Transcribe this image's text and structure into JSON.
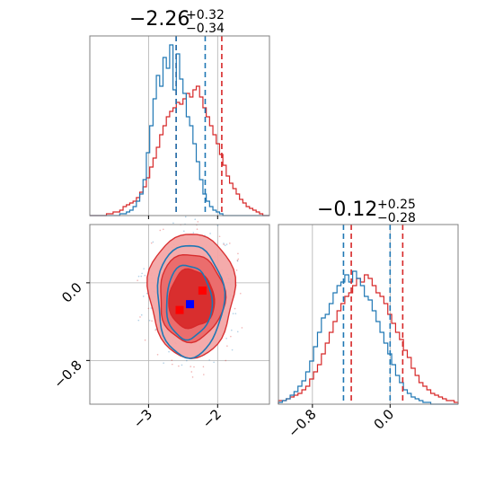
{
  "chart_data": {
    "type": "corner",
    "colors": {
      "series_a": "#d62728",
      "series_b": "#1f77b4",
      "marker_a": "#ff0000",
      "marker_b": "#0000ff",
      "grid": "#b0b0b0",
      "frame": "#808080"
    },
    "param1": {
      "title_main": "−2.26",
      "title_plus": "+0.32",
      "title_minus": "−0.34",
      "range": [
        -3.85,
        -1.25
      ],
      "ticks": [
        -3,
        -2
      ],
      "tick_labels": [
        "−3",
        "−2"
      ],
      "quantiles_series_a": [
        -2.6,
        -1.94
      ],
      "quantiles_series_b": [
        -2.6,
        -2.18
      ]
    },
    "param2": {
      "title_main": "−0.12",
      "title_plus": "+0.25",
      "title_minus": "−0.28",
      "range": [
        -1.15,
        0.7
      ],
      "ticks": [
        -0.8,
        0.0
      ],
      "tick_labels": [
        "−0.8",
        "0.0"
      ],
      "quantiles_series_a": [
        -0.4,
        0.13
      ],
      "quantiles_series_b": [
        -0.48,
        0.0
      ]
    },
    "hist1_series_a": [
      0,
      0,
      0,
      0,
      0,
      0.01,
      0.01,
      0.02,
      0.02,
      0.03,
      0.05,
      0.06,
      0.07,
      0.08,
      0.1,
      0.13,
      0.16,
      0.21,
      0.27,
      0.32,
      0.38,
      0.45,
      0.5,
      0.55,
      0.58,
      0.6,
      0.63,
      0.62,
      0.65,
      0.68,
      0.66,
      0.7,
      0.72,
      0.66,
      0.6,
      0.55,
      0.5,
      0.45,
      0.4,
      0.34,
      0.28,
      0.22,
      0.18,
      0.15,
      0.12,
      0.09,
      0.07,
      0.05,
      0.04,
      0.03,
      0.02,
      0.01,
      0,
      0
    ],
    "hist1_series_b": [
      0,
      0,
      0,
      0,
      0,
      0,
      0,
      0,
      0,
      0.01,
      0.01,
      0.02,
      0.03,
      0.05,
      0.08,
      0.12,
      0.2,
      0.35,
      0.5,
      0.65,
      0.78,
      0.72,
      0.88,
      0.82,
      0.95,
      0.7,
      0.9,
      0.76,
      0.68,
      0.55,
      0.5,
      0.4,
      0.3,
      0.2,
      0.12,
      0.08,
      0.05,
      0.03,
      0.02,
      0.01,
      0,
      0,
      0,
      0,
      0,
      0,
      0,
      0,
      0,
      0,
      0,
      0,
      0,
      0
    ],
    "hist2_series_a": [
      0.02,
      0.02,
      0.03,
      0.04,
      0.05,
      0.06,
      0.08,
      0.1,
      0.14,
      0.18,
      0.22,
      0.28,
      0.34,
      0.4,
      0.46,
      0.52,
      0.56,
      0.6,
      0.62,
      0.66,
      0.7,
      0.68,
      0.72,
      0.7,
      0.66,
      0.62,
      0.6,
      0.56,
      0.5,
      0.45,
      0.4,
      0.36,
      0.3,
      0.26,
      0.2,
      0.16,
      0.12,
      0.1,
      0.08,
      0.06,
      0.05,
      0.04,
      0.03,
      0.02,
      0.02,
      0.01
    ],
    "hist2_series_b": [
      0.01,
      0.02,
      0.03,
      0.05,
      0.07,
      0.1,
      0.13,
      0.18,
      0.24,
      0.32,
      0.4,
      0.48,
      0.5,
      0.56,
      0.62,
      0.66,
      0.68,
      0.72,
      0.68,
      0.74,
      0.7,
      0.66,
      0.6,
      0.58,
      0.52,
      0.46,
      0.4,
      0.34,
      0.28,
      0.22,
      0.16,
      0.12,
      0.08,
      0.06,
      0.04,
      0.03,
      0.02,
      0.01,
      0.01,
      0,
      0,
      0,
      0,
      0,
      0,
      0
    ],
    "contour_series_a": [
      {
        "level": 1,
        "cx": -2.38,
        "cy": -0.12,
        "rx": 0.62,
        "ry": 0.64
      },
      {
        "level": 2,
        "cx": -2.38,
        "cy": -0.15,
        "rx": 0.47,
        "ry": 0.45
      },
      {
        "level": 3,
        "cx": -2.38,
        "cy": -0.17,
        "rx": 0.33,
        "ry": 0.3
      }
    ],
    "contour_series_b": [
      {
        "level": 1,
        "cx": -2.4,
        "cy": -0.18,
        "rx": 0.48,
        "ry": 0.58
      },
      {
        "level": 2,
        "cx": -2.42,
        "cy": -0.2,
        "rx": 0.33,
        "ry": 0.38
      }
    ],
    "markers": [
      {
        "x": -2.55,
        "y": -0.28,
        "color": "#ff0000"
      },
      {
        "x": -2.22,
        "y": -0.08,
        "color": "#ff0000"
      },
      {
        "x": -2.4,
        "y": -0.22,
        "color": "#0000ff"
      }
    ]
  }
}
